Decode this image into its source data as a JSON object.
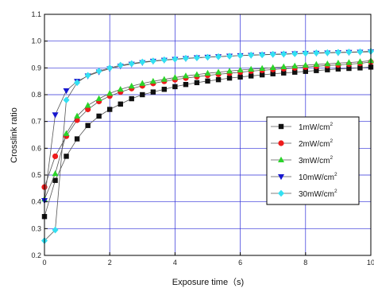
{
  "chart_data": {
    "type": "scatter",
    "xlabel": "Exposure time（s)",
    "ylabel": "Crosslink ratio",
    "xlim": [
      0,
      10
    ],
    "ylim": [
      0.2,
      1.1
    ],
    "x_ticks": [
      "0",
      "2",
      "4",
      "6",
      "8",
      "10"
    ],
    "y_ticks": [
      "0.2",
      "0.3",
      "0.4",
      "0.5",
      "0.6",
      "0.7",
      "0.8",
      "0.9",
      "1.0",
      "1.1"
    ],
    "grid": true,
    "legend_position": "right",
    "x": [
      0,
      0.33,
      0.67,
      1.0,
      1.33,
      1.67,
      2.0,
      2.33,
      2.67,
      3.0,
      3.33,
      3.67,
      4.0,
      4.33,
      4.67,
      5.0,
      5.33,
      5.67,
      6.0,
      6.33,
      6.67,
      7.0,
      7.33,
      7.67,
      8.0,
      8.33,
      8.67,
      9.0,
      9.33,
      9.67,
      10.0
    ],
    "series": [
      {
        "name": "1mW/cm",
        "name_sup": "2",
        "marker": "square",
        "color": "#111111",
        "values": [
          0.345,
          0.48,
          0.57,
          0.635,
          0.685,
          0.72,
          0.745,
          0.765,
          0.785,
          0.8,
          0.81,
          0.82,
          0.83,
          0.838,
          0.845,
          0.851,
          0.856,
          0.862,
          0.866,
          0.87,
          0.874,
          0.878,
          0.881,
          0.884,
          0.887,
          0.89,
          0.893,
          0.896,
          0.898,
          0.9,
          0.903
        ]
      },
      {
        "name": "2mW/cm",
        "name_sup": "2",
        "marker": "circle",
        "color": "#ee1c1c",
        "values": [
          0.455,
          0.57,
          0.645,
          0.705,
          0.745,
          0.775,
          0.795,
          0.81,
          0.823,
          0.833,
          0.842,
          0.85,
          0.856,
          0.862,
          0.867,
          0.872,
          0.876,
          0.88,
          0.884,
          0.888,
          0.891,
          0.894,
          0.897,
          0.9,
          0.903,
          0.906,
          0.909,
          0.911,
          0.914,
          0.917,
          0.922
        ]
      },
      {
        "name": "3mW/cm",
        "name_sup": "2",
        "marker": "triangle-up",
        "color": "#2bd42b",
        "values": [
          0.41,
          0.505,
          0.655,
          0.72,
          0.76,
          0.785,
          0.805,
          0.82,
          0.832,
          0.842,
          0.85,
          0.857,
          0.864,
          0.87,
          0.875,
          0.88,
          0.884,
          0.888,
          0.892,
          0.895,
          0.898,
          0.901,
          0.904,
          0.907,
          0.91,
          0.913,
          0.915,
          0.918,
          0.92,
          0.923,
          0.927
        ]
      },
      {
        "name": "10mW/cm",
        "name_sup": "2",
        "marker": "triangle-down",
        "color": "#1717cf",
        "values": [
          0.405,
          0.725,
          0.815,
          0.85,
          0.87,
          0.885,
          0.897,
          0.907,
          0.914,
          0.92,
          0.925,
          0.929,
          0.932,
          0.935,
          0.938,
          0.94,
          0.942,
          0.944,
          0.946,
          0.947,
          0.949,
          0.95,
          0.951,
          0.953,
          0.954,
          0.955,
          0.956,
          0.957,
          0.958,
          0.959,
          0.96
        ]
      },
      {
        "name": "30mW/cm",
        "name_sup": "2",
        "marker": "diamond",
        "color": "#33e0f2",
        "values": [
          0.255,
          0.295,
          0.78,
          0.845,
          0.872,
          0.888,
          0.9,
          0.91,
          0.916,
          0.922,
          0.926,
          0.93,
          0.933,
          0.936,
          0.938,
          0.94,
          0.942,
          0.944,
          0.946,
          0.948,
          0.949,
          0.951,
          0.952,
          0.953,
          0.955,
          0.956,
          0.957,
          0.958,
          0.959,
          0.96,
          0.962
        ]
      }
    ]
  }
}
